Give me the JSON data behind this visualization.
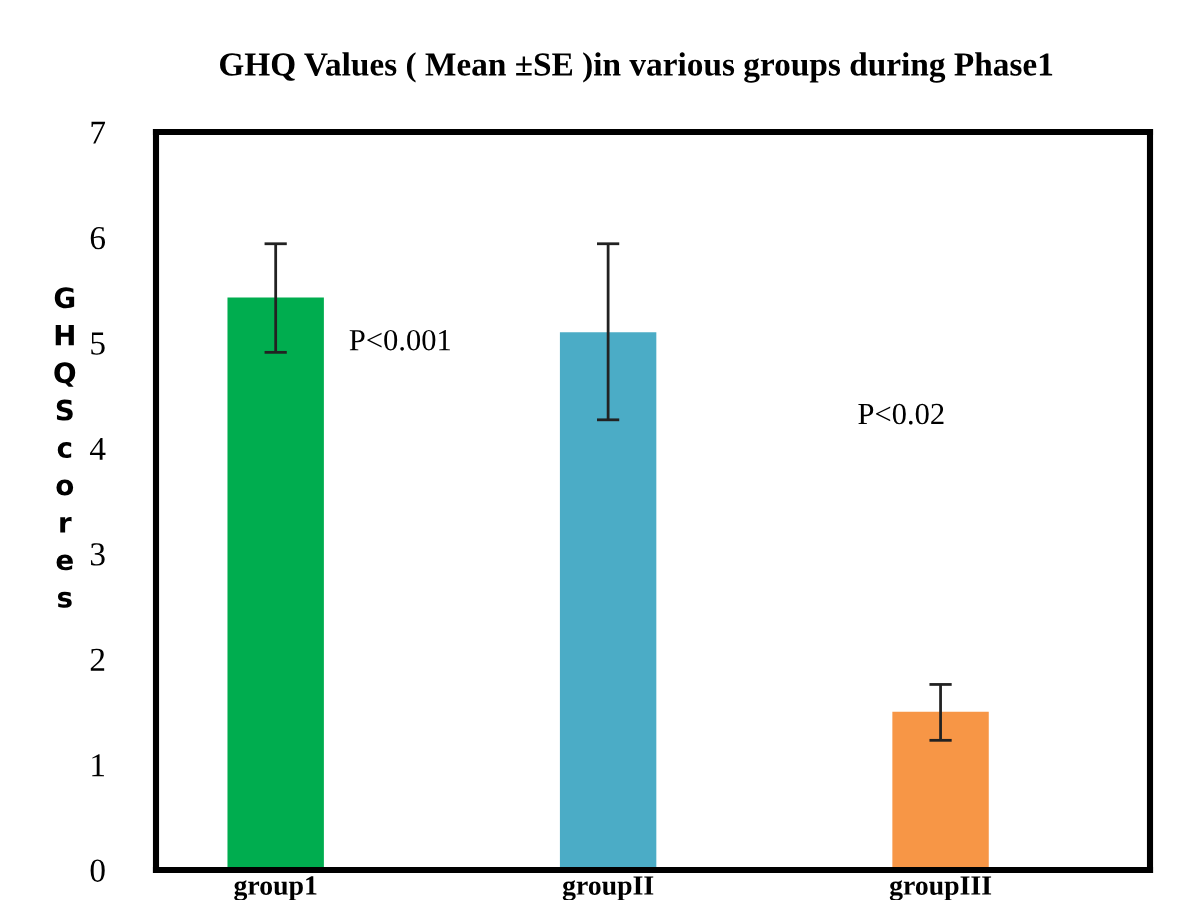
{
  "chart_data": {
    "type": "bar",
    "title": "GHQ Values ( Mean ±SE )in various groups during Phase1",
    "ylabel": "GHQ Scores",
    "categories": [
      "group1",
      "groupII",
      "groupIII"
    ],
    "values": [
      5.43,
      5.1,
      1.5
    ],
    "colors": [
      "#00ad4f",
      "#4bacc6",
      "#f79646"
    ],
    "errors": [
      [
        4.91,
        5.94
      ],
      [
        4.27,
        5.94
      ],
      [
        1.23,
        1.76
      ]
    ],
    "ylim": [
      0,
      7
    ],
    "yticks": [
      0,
      1,
      2,
      3,
      4,
      5,
      6,
      7
    ],
    "grid": false,
    "legend": false,
    "annotations": [
      "P<0.001",
      "P<0.02"
    ]
  }
}
